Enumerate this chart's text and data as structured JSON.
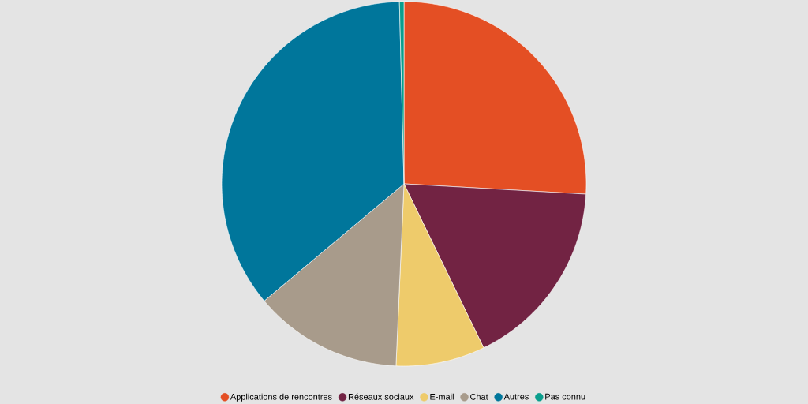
{
  "chart_data": {
    "type": "pie",
    "categories": [
      "Applications de rencontres",
      "Réseaux sociaux",
      "E-mail",
      "Chat",
      "Autres",
      "Pas connu"
    ],
    "values": [
      25.9,
      16.9,
      7.9,
      13.2,
      35.7,
      0.4
    ],
    "colors": [
      "#e44f24",
      "#722343",
      "#eecb6b",
      "#a89b8b",
      "#00769b",
      "#0a9e8d"
    ],
    "legend": "bottom"
  }
}
